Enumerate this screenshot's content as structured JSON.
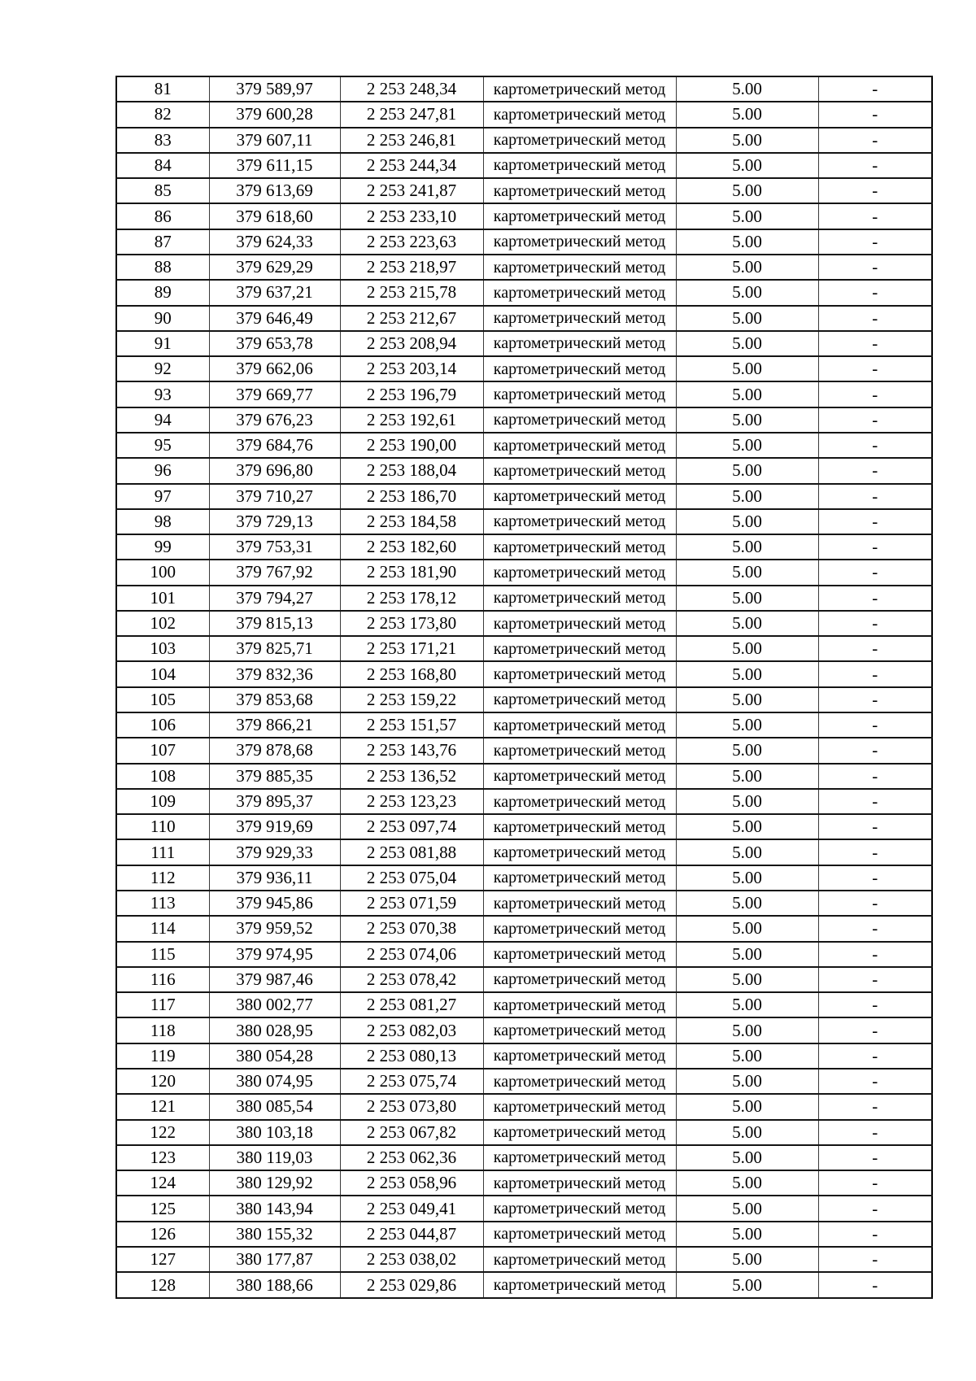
{
  "page": {
    "background_color": "#ffffff",
    "text_color": "#000000",
    "border_color": "#000000"
  },
  "table": {
    "method_label": "картометрический метод",
    "precision_value": "5.00",
    "note_value": "-",
    "rows": [
      {
        "n": "81",
        "x": "379 589,97",
        "y": "2 253 248,34"
      },
      {
        "n": "82",
        "x": "379 600,28",
        "y": "2 253 247,81"
      },
      {
        "n": "83",
        "x": "379 607,11",
        "y": "2 253 246,81"
      },
      {
        "n": "84",
        "x": "379 611,15",
        "y": "2 253 244,34"
      },
      {
        "n": "85",
        "x": "379 613,69",
        "y": "2 253 241,87"
      },
      {
        "n": "86",
        "x": "379 618,60",
        "y": "2 253 233,10"
      },
      {
        "n": "87",
        "x": "379 624,33",
        "y": "2 253 223,63"
      },
      {
        "n": "88",
        "x": "379 629,29",
        "y": "2 253 218,97"
      },
      {
        "n": "89",
        "x": "379 637,21",
        "y": "2 253 215,78"
      },
      {
        "n": "90",
        "x": "379 646,49",
        "y": "2 253 212,67"
      },
      {
        "n": "91",
        "x": "379 653,78",
        "y": "2 253 208,94"
      },
      {
        "n": "92",
        "x": "379 662,06",
        "y": "2 253 203,14"
      },
      {
        "n": "93",
        "x": "379 669,77",
        "y": "2 253 196,79"
      },
      {
        "n": "94",
        "x": "379 676,23",
        "y": "2 253 192,61"
      },
      {
        "n": "95",
        "x": "379 684,76",
        "y": "2 253 190,00"
      },
      {
        "n": "96",
        "x": "379 696,80",
        "y": "2 253 188,04"
      },
      {
        "n": "97",
        "x": "379 710,27",
        "y": "2 253 186,70"
      },
      {
        "n": "98",
        "x": "379 729,13",
        "y": "2 253 184,58"
      },
      {
        "n": "99",
        "x": "379 753,31",
        "y": "2 253 182,60"
      },
      {
        "n": "100",
        "x": "379 767,92",
        "y": "2 253 181,90"
      },
      {
        "n": "101",
        "x": "379 794,27",
        "y": "2 253 178,12"
      },
      {
        "n": "102",
        "x": "379 815,13",
        "y": "2 253 173,80"
      },
      {
        "n": "103",
        "x": "379 825,71",
        "y": "2 253 171,21"
      },
      {
        "n": "104",
        "x": "379 832,36",
        "y": "2 253 168,80"
      },
      {
        "n": "105",
        "x": "379 853,68",
        "y": "2 253 159,22"
      },
      {
        "n": "106",
        "x": "379 866,21",
        "y": "2 253 151,57"
      },
      {
        "n": "107",
        "x": "379 878,68",
        "y": "2 253 143,76"
      },
      {
        "n": "108",
        "x": "379 885,35",
        "y": "2 253 136,52"
      },
      {
        "n": "109",
        "x": "379 895,37",
        "y": "2 253 123,23"
      },
      {
        "n": "110",
        "x": "379 919,69",
        "y": "2 253 097,74"
      },
      {
        "n": "111",
        "x": "379 929,33",
        "y": "2 253 081,88"
      },
      {
        "n": "112",
        "x": "379 936,11",
        "y": "2 253 075,04"
      },
      {
        "n": "113",
        "x": "379 945,86",
        "y": "2 253 071,59"
      },
      {
        "n": "114",
        "x": "379 959,52",
        "y": "2 253 070,38"
      },
      {
        "n": "115",
        "x": "379 974,95",
        "y": "2 253 074,06"
      },
      {
        "n": "116",
        "x": "379 987,46",
        "y": "2 253 078,42"
      },
      {
        "n": "117",
        "x": "380 002,77",
        "y": "2 253 081,27"
      },
      {
        "n": "118",
        "x": "380 028,95",
        "y": "2 253 082,03"
      },
      {
        "n": "119",
        "x": "380 054,28",
        "y": "2 253 080,13"
      },
      {
        "n": "120",
        "x": "380 074,95",
        "y": "2 253 075,74"
      },
      {
        "n": "121",
        "x": "380 085,54",
        "y": "2 253 073,80"
      },
      {
        "n": "122",
        "x": "380 103,18",
        "y": "2 253 067,82"
      },
      {
        "n": "123",
        "x": "380 119,03",
        "y": "2 253 062,36"
      },
      {
        "n": "124",
        "x": "380 129,92",
        "y": "2 253 058,96"
      },
      {
        "n": "125",
        "x": "380 143,94",
        "y": "2 253 049,41"
      },
      {
        "n": "126",
        "x": "380 155,32",
        "y": "2 253 044,87"
      },
      {
        "n": "127",
        "x": "380 177,87",
        "y": "2 253 038,02"
      },
      {
        "n": "128",
        "x": "380 188,66",
        "y": "2 253 029,86"
      }
    ]
  }
}
